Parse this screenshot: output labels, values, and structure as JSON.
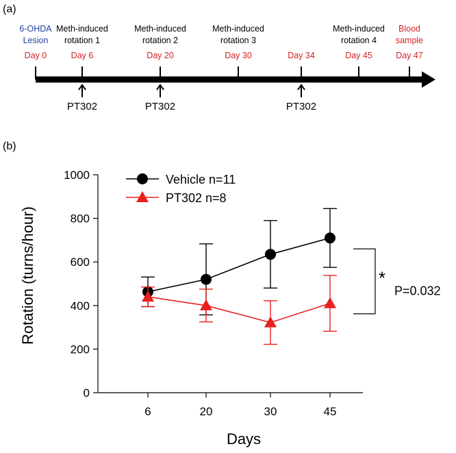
{
  "panel_a": {
    "label": "(a)",
    "events": [
      {
        "lines": [
          "6-OHDA",
          "Lesion"
        ],
        "day": "Day 0",
        "lines_color": "#1f3f9f",
        "day_color": "#d42020",
        "tick": true
      },
      {
        "lines": [
          "Meth-induced",
          "rotation 1"
        ],
        "day": "Day 6",
        "lines_color": "#000000",
        "day_color": "#d42020",
        "tick": true
      },
      {
        "lines": [
          "Meth-induced",
          "rotation 2"
        ],
        "day": "Day 20",
        "lines_color": "#000000",
        "day_color": "#d42020",
        "tick": true
      },
      {
        "lines": [
          "Meth-induced",
          "rotation 3"
        ],
        "day": "Day 30",
        "lines_color": "#000000",
        "day_color": "#d42020",
        "tick": true
      },
      {
        "lines": [],
        "day": "Day 34",
        "lines_color": "#000000",
        "day_color": "#d42020",
        "tick": true
      },
      {
        "lines": [
          "Meth-induced",
          "rotation 4"
        ],
        "day": "Day 45",
        "lines_color": "#000000",
        "day_color": "#d42020",
        "tick": true
      },
      {
        "lines": [
          "Blood",
          "sample"
        ],
        "day": "Day 47",
        "lines_color": "#d42020",
        "day_color": "#d42020",
        "tick": true
      }
    ],
    "treatments": [
      {
        "event_index": 1,
        "label": "PT302"
      },
      {
        "event_index": 2,
        "label": "PT302"
      },
      {
        "event_index": 4,
        "label": "PT302"
      }
    ]
  },
  "chart_data": {
    "type": "line",
    "panel_label": "(b)",
    "title": "",
    "xlabel": "Days",
    "ylabel": "Rotation (turns/hour)",
    "categories": [
      "6",
      "20",
      "30",
      "45"
    ],
    "ylim": [
      0,
      1000
    ],
    "yticks": [
      0,
      200,
      400,
      600,
      800,
      1000
    ],
    "grid": false,
    "legend_position": "top-left",
    "series": [
      {
        "name": "Vehicle n=11",
        "marker": "circle",
        "color": "#000000",
        "values": [
          463,
          520,
          635,
          710
        ],
        "err": [
          68,
          163,
          155,
          135
        ]
      },
      {
        "name": "PT302 n=8",
        "marker": "triangle",
        "color": "#e8201e",
        "values": [
          440,
          400,
          322,
          410
        ],
        "err": [
          45,
          75,
          100,
          128
        ]
      }
    ],
    "annotation": {
      "symbol": "*",
      "text": "P=0.032",
      "from": 660,
      "to": 362
    }
  }
}
